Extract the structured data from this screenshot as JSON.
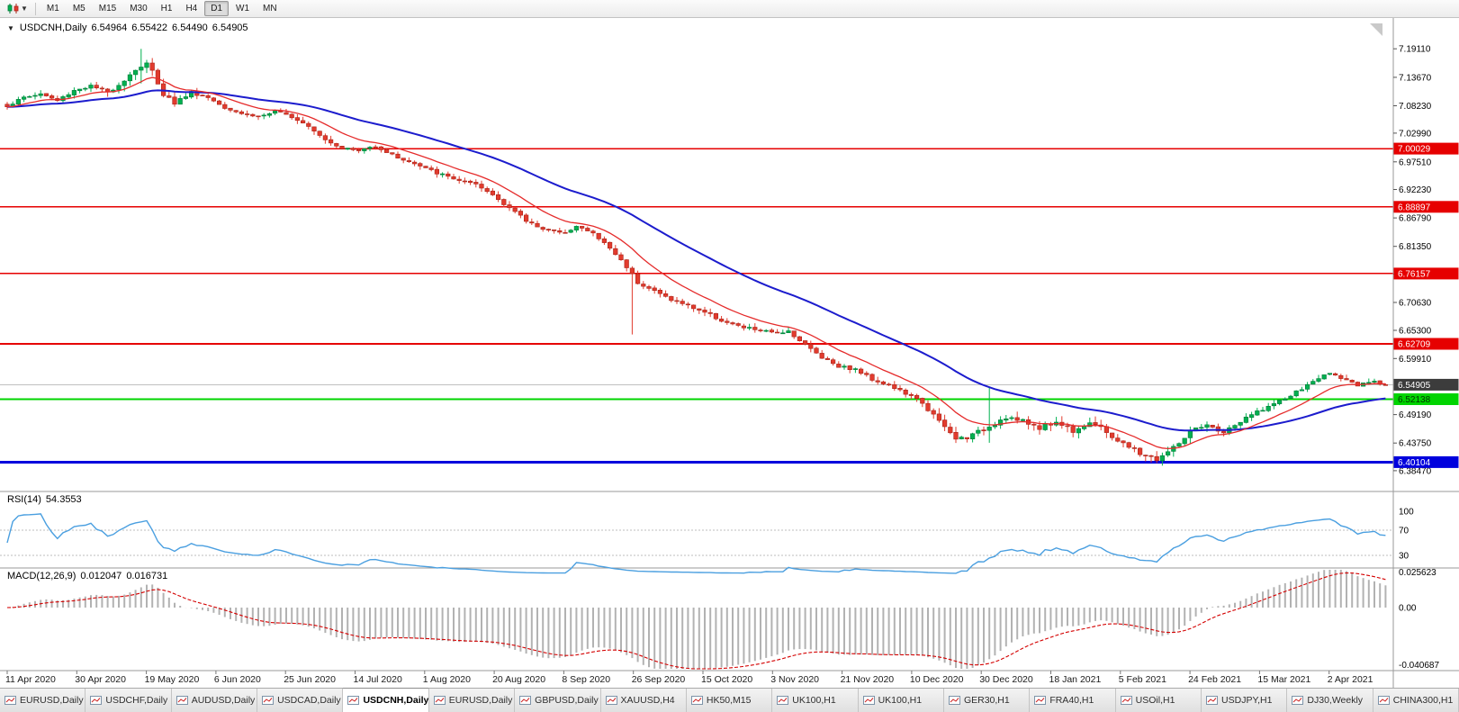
{
  "toolbar": {
    "timeframes": [
      "M1",
      "M5",
      "M15",
      "M30",
      "H1",
      "H4",
      "D1",
      "W1",
      "MN"
    ],
    "active_timeframe": "D1"
  },
  "chart": {
    "title": "USDCNH,Daily",
    "ohlc": {
      "open": "6.54964",
      "high": "6.55422",
      "low": "6.54490",
      "close": "6.54905"
    }
  },
  "chart_data": {
    "type": "candlestick",
    "symbol": "USDCNH",
    "timeframe": "Daily",
    "num_candles": 248,
    "price_range": {
      "max": 7.25,
      "min": 6.345
    },
    "y_ticks": [
      7.1911,
      7.1367,
      7.0823,
      7.0299,
      6.9751,
      6.9223,
      6.8679,
      6.8135,
      6.7603,
      6.7063,
      6.653,
      6.5991,
      6.4919,
      6.4375,
      6.3847
    ],
    "x_labels": [
      "11 Apr 2020",
      "30 Apr 2020",
      "19 May 2020",
      "6 Jun 2020",
      "25 Jun 2020",
      "14 Jul 2020",
      "1 Aug 2020",
      "20 Aug 2020",
      "8 Sep 2020",
      "26 Sep 2020",
      "15 Oct 2020",
      "3 Nov 2020",
      "21 Nov 2020",
      "10 Dec 2020",
      "30 Dec 2020",
      "18 Jan 2021",
      "5 Feb 2021",
      "24 Feb 2021",
      "15 Mar 2021",
      "2 Apr 2021"
    ],
    "anchors": [
      [
        0,
        7.082
      ],
      [
        3,
        7.098
      ],
      [
        6,
        7.105
      ],
      [
        9,
        7.092
      ],
      [
        12,
        7.112
      ],
      [
        15,
        7.12
      ],
      [
        18,
        7.108
      ],
      [
        21,
        7.132
      ],
      [
        23,
        7.152
      ],
      [
        25,
        7.162
      ],
      [
        26,
        7.148
      ],
      [
        28,
        7.105
      ],
      [
        30,
        7.088
      ],
      [
        33,
        7.108
      ],
      [
        36,
        7.098
      ],
      [
        39,
        7.08
      ],
      [
        42,
        7.068
      ],
      [
        45,
        7.062
      ],
      [
        48,
        7.07
      ],
      [
        51,
        7.062
      ],
      [
        54,
        7.045
      ],
      [
        57,
        7.018
      ],
      [
        60,
        7.002
      ],
      [
        63,
        6.996
      ],
      [
        66,
        7.006
      ],
      [
        69,
        6.988
      ],
      [
        72,
        6.975
      ],
      [
        75,
        6.962
      ],
      [
        78,
        6.95
      ],
      [
        81,
        6.94
      ],
      [
        84,
        6.93
      ],
      [
        87,
        6.912
      ],
      [
        90,
        6.888
      ],
      [
        93,
        6.862
      ],
      [
        96,
        6.848
      ],
      [
        99,
        6.838
      ],
      [
        102,
        6.852
      ],
      [
        105,
        6.838
      ],
      [
        108,
        6.81
      ],
      [
        111,
        6.775
      ],
      [
        113,
        6.745
      ],
      [
        116,
        6.728
      ],
      [
        119,
        6.712
      ],
      [
        122,
        6.7
      ],
      [
        125,
        6.688
      ],
      [
        128,
        6.672
      ],
      [
        131,
        6.66
      ],
      [
        134,
        6.655
      ],
      [
        137,
        6.648
      ],
      [
        140,
        6.652
      ],
      [
        143,
        6.625
      ],
      [
        146,
        6.602
      ],
      [
        149,
        6.585
      ],
      [
        152,
        6.578
      ],
      [
        155,
        6.56
      ],
      [
        158,
        6.548
      ],
      [
        161,
        6.532
      ],
      [
        164,
        6.515
      ],
      [
        167,
        6.478
      ],
      [
        170,
        6.445
      ],
      [
        173,
        6.452
      ],
      [
        176,
        6.47
      ],
      [
        179,
        6.488
      ],
      [
        182,
        6.478
      ],
      [
        185,
        6.468
      ],
      [
        188,
        6.478
      ],
      [
        191,
        6.462
      ],
      [
        194,
        6.478
      ],
      [
        197,
        6.458
      ],
      [
        200,
        6.435
      ],
      [
        203,
        6.418
      ],
      [
        206,
        6.406
      ],
      [
        209,
        6.428
      ],
      [
        212,
        6.458
      ],
      [
        215,
        6.47
      ],
      [
        218,
        6.458
      ],
      [
        221,
        6.478
      ],
      [
        224,
        6.498
      ],
      [
        227,
        6.512
      ],
      [
        230,
        6.528
      ],
      [
        233,
        6.548
      ],
      [
        236,
        6.568
      ],
      [
        238,
        6.57
      ],
      [
        240,
        6.556
      ],
      [
        242,
        6.546
      ],
      [
        244,
        6.554
      ],
      [
        246,
        6.552
      ],
      [
        247,
        6.549
      ]
    ],
    "spikes": [
      {
        "index": 24,
        "high": 7.191,
        "low": 7.125
      },
      {
        "index": 112,
        "high": 6.758,
        "low": 6.645
      },
      {
        "index": 176,
        "high": 6.545,
        "low": 6.438
      }
    ],
    "levels": [
      {
        "value": 7.00029,
        "color": "#e60000",
        "width": 1.6,
        "tag_text": "#ffffff"
      },
      {
        "value": 6.88897,
        "color": "#e60000",
        "width": 1.6,
        "tag_text": "#ffffff"
      },
      {
        "value": 6.76157,
        "color": "#e60000",
        "width": 1.6,
        "tag_text": "#ffffff"
      },
      {
        "value": 6.62709,
        "color": "#e60000",
        "width": 1.6,
        "tag_text": "#ffffff"
      },
      {
        "value": 6.52138,
        "color": "#00d400",
        "width": 2.4,
        "tag_text": "#003300"
      },
      {
        "value": 6.40104,
        "color": "#0000dd",
        "width": 3,
        "tag_text": "#ffffff"
      }
    ],
    "current_price": {
      "value": 6.54905,
      "label": "6.54905",
      "tag_bg": "#3c3c3c",
      "tag_text": "#ffffff",
      "line_color": "#c0c0c0"
    },
    "candle_colors": {
      "up": "#00b050",
      "up_stroke": "#007a36",
      "down": "#e23b2e",
      "down_stroke": "#aa2318"
    },
    "moving_averages": [
      {
        "name": "fast-ma",
        "period": 12,
        "color": "#e52b2b",
        "width": 1.3
      },
      {
        "name": "slow-ma",
        "period": 40,
        "color": "#1c1ccd",
        "width": 2
      }
    ],
    "indicators": {
      "rsi": {
        "label": "RSI(14)",
        "value": "54.3553",
        "period": 14,
        "levels": [
          100,
          70,
          30
        ],
        "dashed_levels": [
          70,
          30
        ],
        "color": "#4a9fe0"
      },
      "macd": {
        "label": "MACD(12,26,9)",
        "macd_value": "0.012047",
        "signal_value": "0.016731",
        "fast": 12,
        "slow": 26,
        "signal": 9,
        "axis_labels": [
          "0.025623",
          "0.00",
          "-0.040687"
        ],
        "range": {
          "max": 0.0262,
          "min": -0.0424
        },
        "bar_color": "#b2b2b2",
        "signal_color": "#d40000"
      }
    }
  },
  "tabs": {
    "active_index": 4,
    "items": [
      "EURUSD,Daily",
      "USDCHF,Daily",
      "AUDUSD,Daily",
      "USDCAD,Daily",
      "USDCNH,Daily",
      "EURUSD,Daily",
      "GBPUSD,Daily",
      "XAUUSD,H4",
      "HK50,M15",
      "UK100,H1",
      "UK100,H1",
      "GER30,H1",
      "FRA40,H1",
      "USOil,H1",
      "USDJPY,H1",
      "DJ30,Weekly",
      "CHINA300,H1"
    ]
  }
}
